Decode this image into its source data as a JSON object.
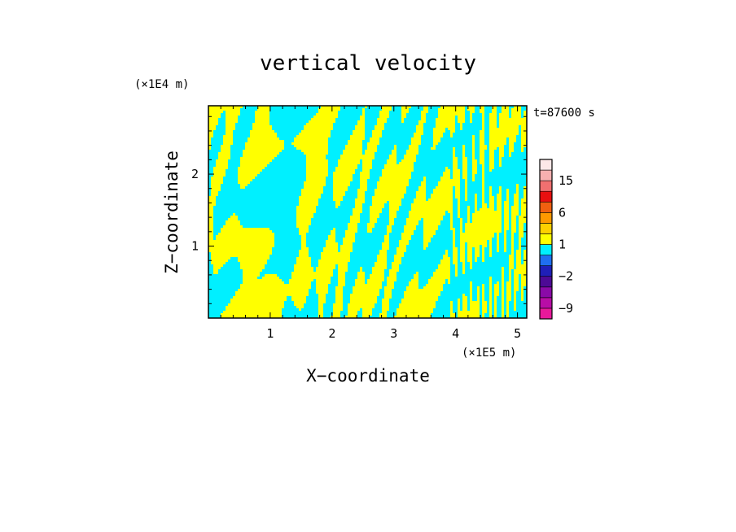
{
  "chart_data": {
    "type": "heatmap",
    "title": "vertical velocity",
    "xlabel": "X−coordinate",
    "ylabel": "Z−coordinate",
    "x_unit": "(×1E5 m)",
    "y_unit": "(×1E4 m)",
    "time_label": "t=87600 s",
    "xlim": [
      0,
      5.15
    ],
    "ylim": [
      0,
      2.95
    ],
    "x_ticks": [
      1,
      2,
      3,
      4,
      5
    ],
    "x_tick_labels": [
      "1",
      "2",
      "3",
      "4",
      "5"
    ],
    "y_ticks": [
      1,
      2
    ],
    "y_tick_labels": [
      "1",
      "2"
    ],
    "field_colors": {
      "positive": "#ffff00",
      "negative": "#00f0ff"
    },
    "colorbar": {
      "levels": [
        -12,
        -9,
        -6,
        -4,
        -2,
        -1,
        0,
        1,
        2,
        4,
        6,
        9,
        12,
        15,
        20
      ],
      "colors": [
        "#e8199b",
        "#b80da6",
        "#8a0aa8",
        "#4d0a96",
        "#1f1fb8",
        "#1f6ff0",
        "#00f0ff",
        "#ffff00",
        "#ffd000",
        "#ff9900",
        "#f06010",
        "#e81010",
        "#f07070",
        "#f8b0b0",
        "#fde8e8"
      ],
      "tick_labels": [
        {
          "value": 15,
          "label": "15"
        },
        {
          "value": 6,
          "label": "6"
        },
        {
          "value": 1,
          "label": "1"
        },
        {
          "value": -2,
          "label": "−2"
        },
        {
          "value": -9,
          "label": "−9"
        }
      ]
    }
  }
}
